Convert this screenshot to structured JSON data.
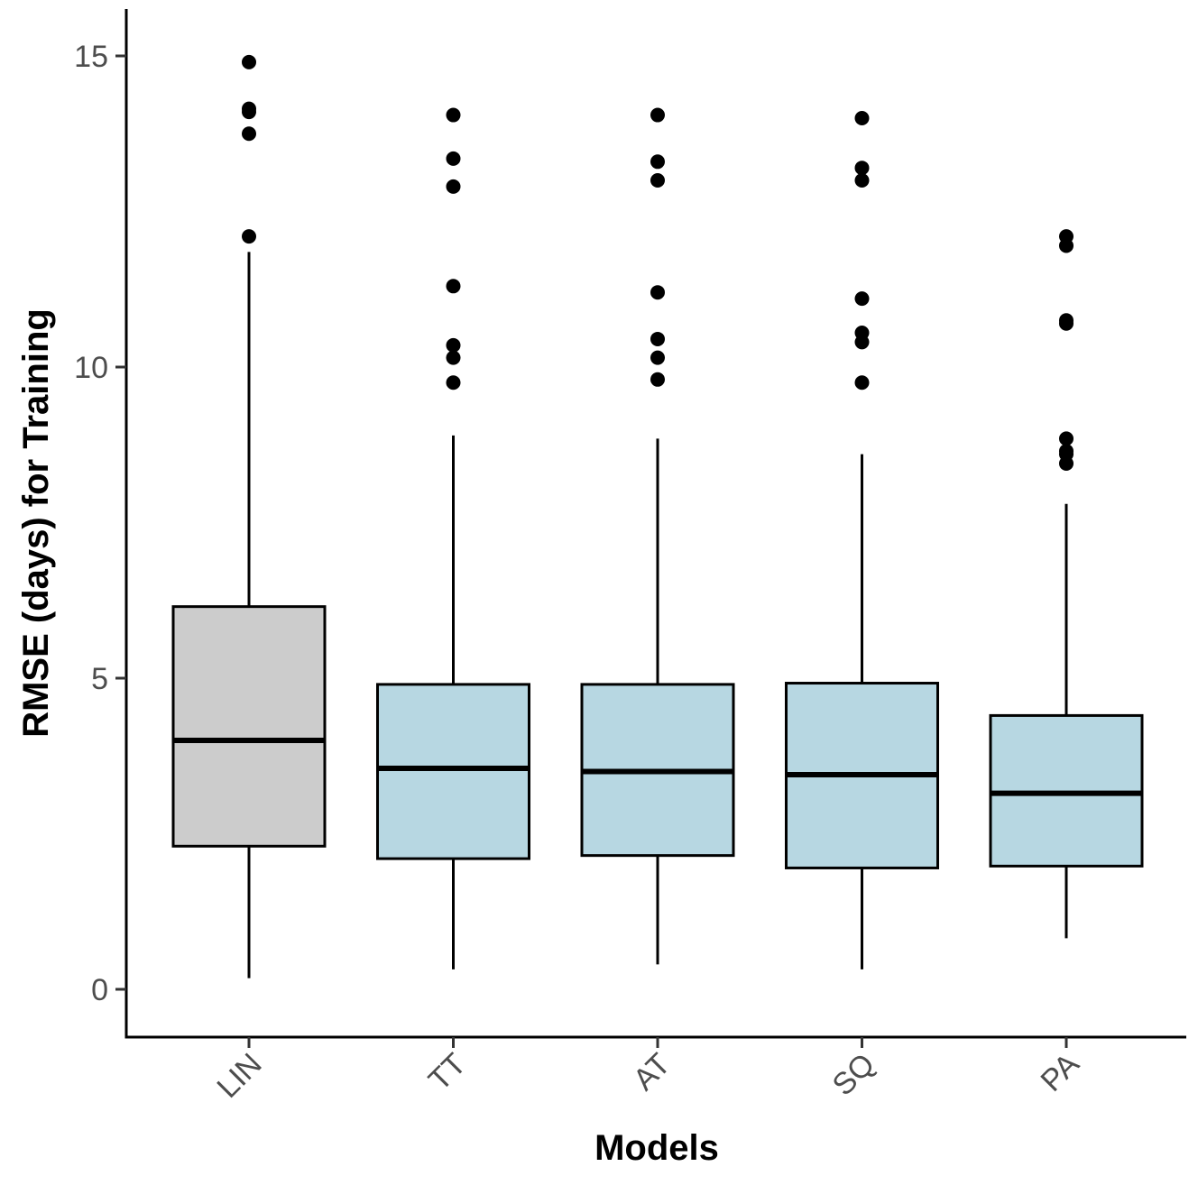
{
  "chart_data": {
    "type": "boxplot",
    "title": "",
    "xlabel": "Models",
    "ylabel": "RMSE (days) for Training",
    "ylim": [
      -0.75,
      15.7
    ],
    "yticks": [
      0,
      5,
      10,
      15
    ],
    "ytick_labels": [
      "0",
      "5",
      "10",
      "15"
    ],
    "grid": false,
    "legend": "none",
    "categories": [
      "LIN",
      "TT",
      "AT",
      "SQ",
      "PA"
    ],
    "colors": {
      "LIN": "#cccccc",
      "TT": "#b7d7e2",
      "AT": "#b7d7e2",
      "SQ": "#b7d7e2",
      "PA": "#b7d7e2",
      "median": "#000000",
      "outline": "#000000",
      "outlier": "#000000"
    },
    "boxes": [
      {
        "category": "LIN",
        "whisker_low": 0.18,
        "q1": 2.3,
        "median": 4.0,
        "q3": 6.15,
        "whisker_high": 11.85,
        "outliers": [
          14.9,
          14.15,
          14.1,
          13.75,
          12.1
        ]
      },
      {
        "category": "TT",
        "whisker_low": 0.32,
        "q1": 2.1,
        "median": 3.55,
        "q3": 4.9,
        "whisker_high": 8.9,
        "outliers": [
          14.05,
          13.35,
          12.9,
          11.3,
          10.35,
          10.15,
          9.75
        ]
      },
      {
        "category": "AT",
        "whisker_low": 0.4,
        "q1": 2.15,
        "median": 3.5,
        "q3": 4.9,
        "whisker_high": 8.85,
        "outliers": [
          14.05,
          13.3,
          13.0,
          11.2,
          10.45,
          10.15,
          9.8
        ]
      },
      {
        "category": "SQ",
        "whisker_low": 0.32,
        "q1": 1.95,
        "median": 3.45,
        "q3": 4.92,
        "whisker_high": 8.6,
        "outliers": [
          14.0,
          13.2,
          13.0,
          11.1,
          10.55,
          10.4,
          9.75
        ]
      },
      {
        "category": "PA",
        "whisker_low": 0.82,
        "q1": 1.98,
        "median": 3.15,
        "q3": 4.4,
        "whisker_high": 7.8,
        "outliers": [
          12.1,
          11.95,
          10.75,
          10.7,
          8.85,
          8.65,
          8.6,
          8.45
        ]
      }
    ]
  }
}
